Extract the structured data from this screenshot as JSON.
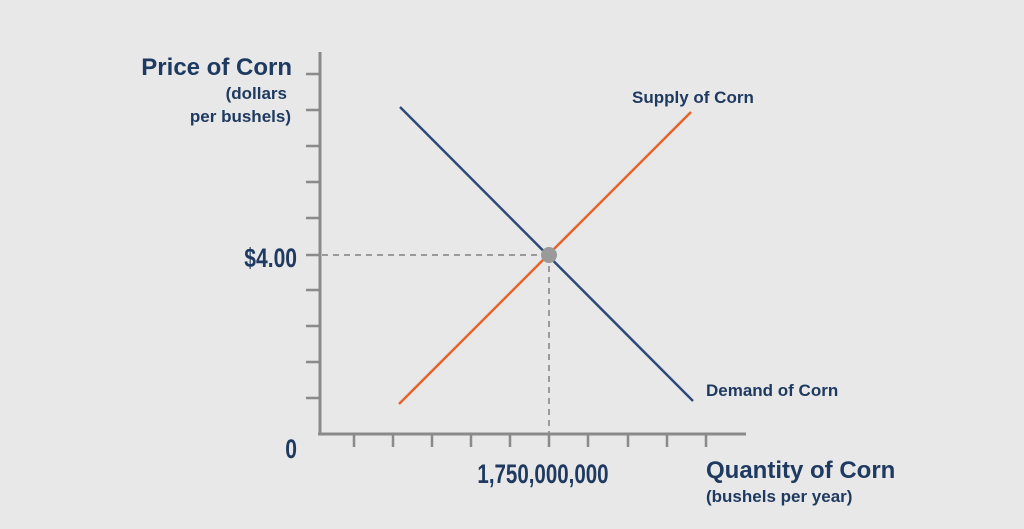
{
  "chart_data": {
    "type": "line",
    "y_axis_title": "Price of Corn",
    "y_axis_subtitle_line1": "(dollars",
    "y_axis_subtitle_line2": "per bushels)",
    "x_axis_title": "Quantity of Corn",
    "x_axis_subtitle": "(bushels per year)",
    "origin_label": "0",
    "equilibrium": {
      "price": 4.0,
      "price_label": "$4.00",
      "quantity": 1750000000,
      "quantity_label": "1,750,000,000"
    },
    "series": [
      {
        "name": "Supply of Corn",
        "color": "#e8622a"
      },
      {
        "name": "Demand of Corn",
        "color": "#2f4a7a"
      }
    ],
    "colors": {
      "axis": "#8a8a8a",
      "guide": "#9a9a9a",
      "point": "#9a9a9a",
      "text": "#1f3a60"
    }
  }
}
